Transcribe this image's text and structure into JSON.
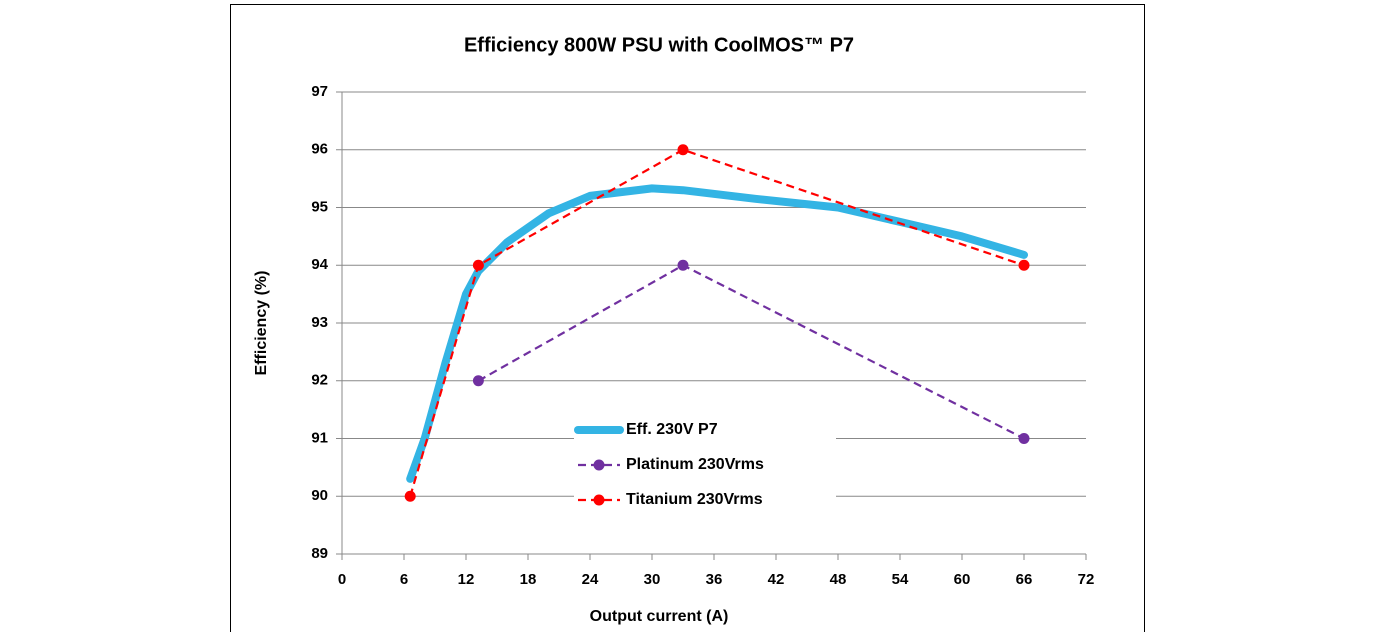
{
  "chart_data": {
    "type": "line",
    "title": "Efficiency 800W PSU with CoolMOS™ P7",
    "x_label": "Output current (A)",
    "y_label": "Efficiency (%)",
    "xlim": [
      0,
      72
    ],
    "xticks": [
      0,
      6,
      12,
      18,
      24,
      30,
      36,
      42,
      48,
      54,
      60,
      66,
      72
    ],
    "ylim": [
      89,
      97
    ],
    "yticks": [
      89,
      90,
      91,
      92,
      93,
      94,
      95,
      96,
      97
    ],
    "grid": true,
    "series": [
      {
        "name": "Eff. 230V P7",
        "color": "#33b4e4",
        "style": "solid",
        "markers": false,
        "x": [
          6.6,
          8,
          10,
          12,
          13.2,
          16,
          20,
          24,
          30,
          33,
          40,
          48,
          54,
          60,
          66
        ],
        "values": [
          90.3,
          91,
          92.3,
          93.5,
          93.9,
          94.4,
          94.9,
          95.2,
          95.33,
          95.3,
          95.15,
          95.0,
          94.75,
          94.5,
          94.18
        ]
      },
      {
        "name": "Platinum 230Vrms",
        "color": "#7030a0",
        "style": "dashed",
        "markers": true,
        "x": [
          13.2,
          33,
          66
        ],
        "values": [
          92,
          94,
          91
        ]
      },
      {
        "name": "Titanium 230Vrms",
        "color": "#ff0000",
        "style": "dashed",
        "markers": true,
        "x": [
          6.6,
          13.2,
          33,
          66
        ],
        "values": [
          90,
          94,
          96,
          94
        ]
      }
    ]
  }
}
